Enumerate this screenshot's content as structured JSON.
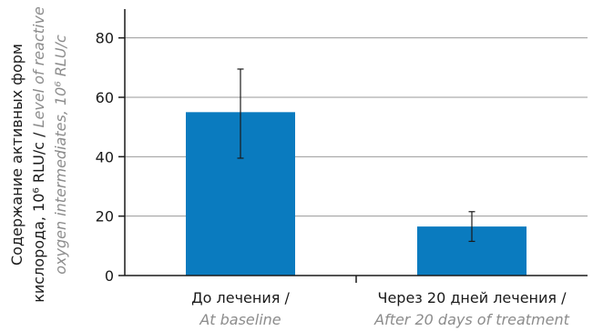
{
  "chart_data": {
    "type": "bar",
    "categories": [
      "До лечения /",
      "Через 20 дней лечения /"
    ],
    "categories_en": [
      "At baseline",
      "After 20 days of treatment"
    ],
    "values": [
      55,
      16.5
    ],
    "error_low": [
      39.5,
      11.5
    ],
    "error_high": [
      69.5,
      21.5
    ],
    "ylim": [
      0,
      90
    ],
    "yticks": [
      0,
      20,
      40,
      60,
      80
    ],
    "grid": true,
    "bar_color": "#0a7bbf",
    "ylabel": {
      "line1": "Содержание активных форм",
      "line2_ru": "кислорода, 10⁶ RLU/с / ",
      "line2_en": "Level of reactive",
      "line3_en": "oxygen intermediates, 10⁶ RLU/c"
    }
  }
}
